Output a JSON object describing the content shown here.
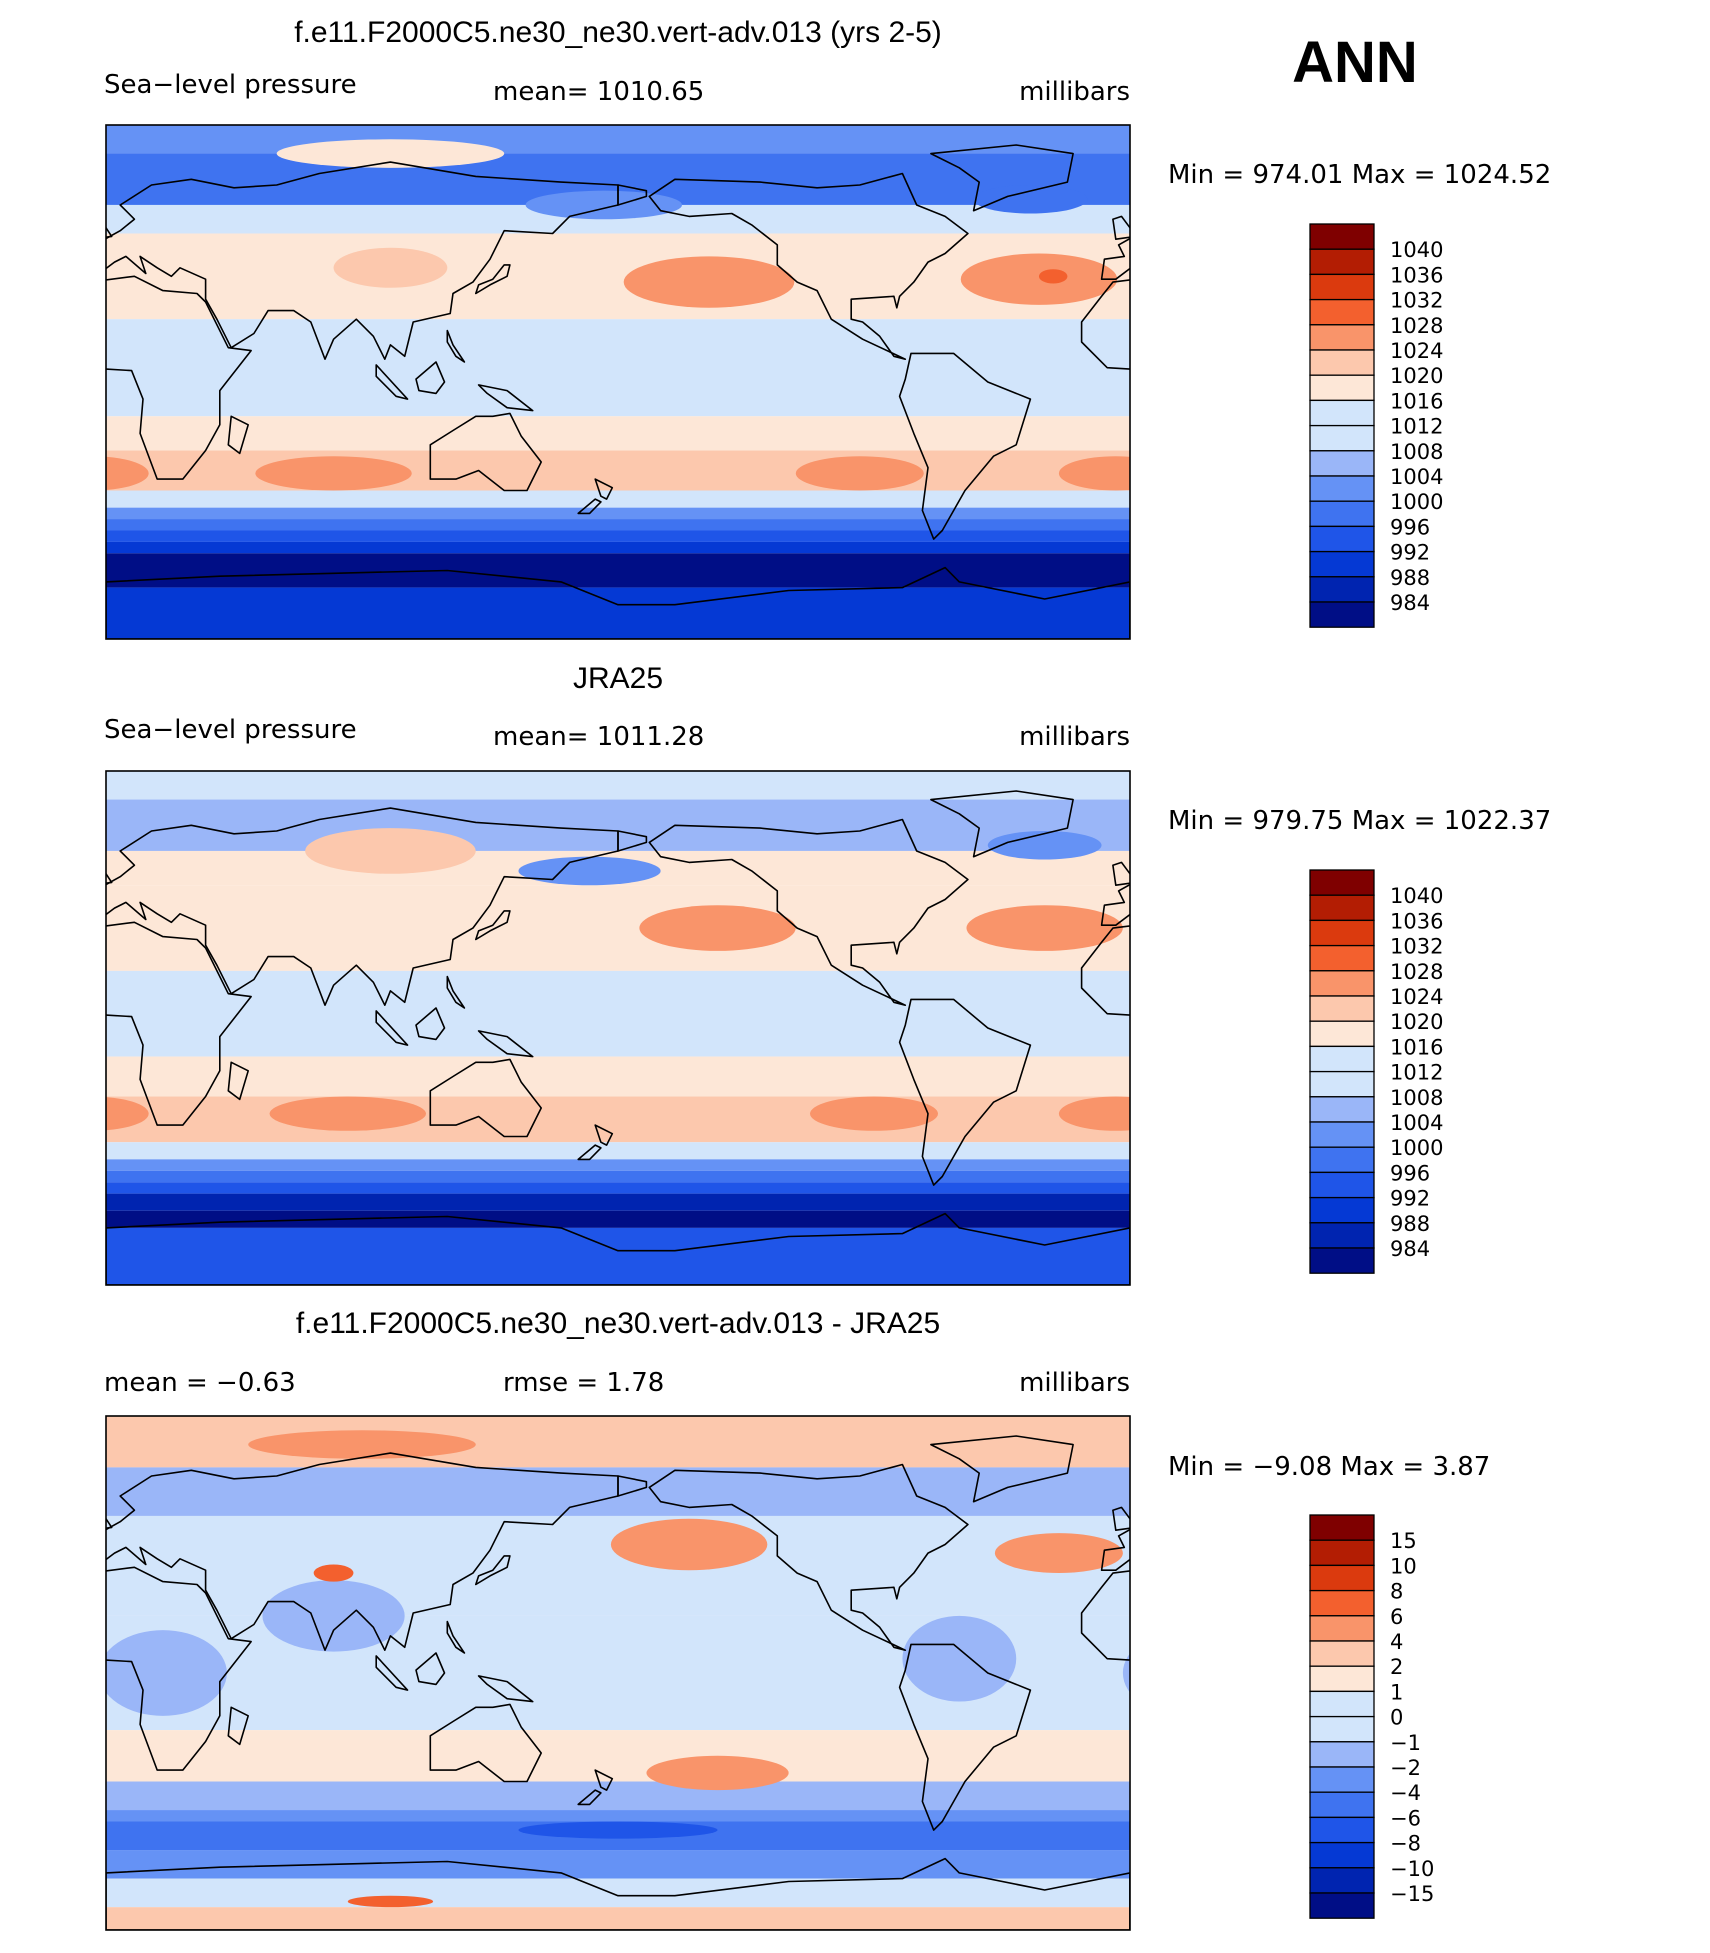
{
  "season": "ANN",
  "panels": [
    {
      "title": "f.e11.F2000C5.ne30_ne30.vert-adv.013 (yrs 2-5)",
      "left": "Sea−level pressure",
      "middle": "mean=  1010.65",
      "right": "millibars",
      "minmax": "Min  =  974.01  Max  =  1024.52",
      "legend": [
        "1040",
        "1036",
        "1032",
        "1028",
        "1024",
        "1020",
        "1016",
        "1012",
        "1008",
        "1004",
        "1000",
        "996",
        "992",
        "988",
        "984"
      ],
      "bands": [
        {
          "lat": [
            90,
            80
          ],
          "level": 5
        },
        {
          "lat": [
            80,
            62
          ],
          "level": 4
        },
        {
          "lat": [
            62,
            52
          ],
          "level": 7
        },
        {
          "lat": [
            52,
            22
          ],
          "level": 8
        },
        {
          "lat": [
            22,
            -12
          ],
          "level": 7
        },
        {
          "lat": [
            -12,
            -24
          ],
          "level": 8
        },
        {
          "lat": [
            -24,
            -38
          ],
          "level": 9
        },
        {
          "lat": [
            -38,
            -44
          ],
          "level": 7
        },
        {
          "lat": [
            -44,
            -48
          ],
          "level": 5
        },
        {
          "lat": [
            -48,
            -52
          ],
          "level": 4
        },
        {
          "lat": [
            -52,
            -56
          ],
          "level": 3
        },
        {
          "lat": [
            -56,
            -60
          ],
          "level": 2
        },
        {
          "lat": [
            -60,
            -72
          ],
          "level": 0
        },
        {
          "lat": [
            -72,
            -90
          ],
          "level": 2
        }
      ],
      "blobs": [
        {
          "lon": 212,
          "lat": 35,
          "w": 60,
          "h": 18,
          "level": 10
        },
        {
          "lon": 328,
          "lat": 36,
          "w": 55,
          "h": 18,
          "level": 10
        },
        {
          "lon": 333,
          "lat": 37,
          "w": 10,
          "h": 5,
          "level": 11
        },
        {
          "lon": 100,
          "lat": 40,
          "w": 40,
          "h": 14,
          "level": 9
        },
        {
          "lon": 80,
          "lat": -32,
          "w": 55,
          "h": 12,
          "level": 10
        },
        {
          "lon": 265,
          "lat": -32,
          "w": 45,
          "h": 12,
          "level": 10
        },
        {
          "lon": 355,
          "lat": -32,
          "w": 40,
          "h": 12,
          "level": 10
        },
        {
          "lon": 175,
          "lat": 62,
          "w": 55,
          "h": 10,
          "level": 5
        },
        {
          "lon": 325,
          "lat": 64,
          "w": 40,
          "h": 10,
          "level": 4
        },
        {
          "lon": 100,
          "lat": 80,
          "w": 80,
          "h": 10,
          "level": 8
        }
      ]
    },
    {
      "title": "JRA25",
      "left": "Sea−level pressure",
      "middle": "mean=  1011.28",
      "right": "millibars",
      "minmax": "Min  =  979.75  Max  =  1022.37",
      "legend": [
        "1040",
        "1036",
        "1032",
        "1028",
        "1024",
        "1020",
        "1016",
        "1012",
        "1008",
        "1004",
        "1000",
        "996",
        "992",
        "988",
        "984"
      ],
      "bands": [
        {
          "lat": [
            90,
            80
          ],
          "level": 7
        },
        {
          "lat": [
            80,
            62
          ],
          "level": 6
        },
        {
          "lat": [
            62,
            50
          ],
          "level": 8
        },
        {
          "lat": [
            50,
            20
          ],
          "level": 8
        },
        {
          "lat": [
            20,
            -10
          ],
          "level": 7
        },
        {
          "lat": [
            -10,
            -24
          ],
          "level": 8
        },
        {
          "lat": [
            -24,
            -40
          ],
          "level": 9
        },
        {
          "lat": [
            -40,
            -46
          ],
          "level": 7
        },
        {
          "lat": [
            -46,
            -50
          ],
          "level": 5
        },
        {
          "lat": [
            -50,
            -54
          ],
          "level": 4
        },
        {
          "lat": [
            -54,
            -58
          ],
          "level": 3
        },
        {
          "lat": [
            -58,
            -64
          ],
          "level": 1
        },
        {
          "lat": [
            -64,
            -70
          ],
          "level": 0
        },
        {
          "lat": [
            -70,
            -90
          ],
          "level": 3
        }
      ],
      "blobs": [
        {
          "lon": 215,
          "lat": 35,
          "w": 55,
          "h": 16,
          "level": 10
        },
        {
          "lon": 330,
          "lat": 35,
          "w": 55,
          "h": 16,
          "level": 10
        },
        {
          "lon": 170,
          "lat": 55,
          "w": 50,
          "h": 10,
          "level": 5
        },
        {
          "lon": 330,
          "lat": 64,
          "w": 40,
          "h": 10,
          "level": 5
        },
        {
          "lon": 85,
          "lat": -30,
          "w": 55,
          "h": 12,
          "level": 10
        },
        {
          "lon": 270,
          "lat": -30,
          "w": 45,
          "h": 12,
          "level": 10
        },
        {
          "lon": 355,
          "lat": -30,
          "w": 40,
          "h": 12,
          "level": 10
        },
        {
          "lon": 100,
          "lat": 62,
          "w": 60,
          "h": 16,
          "level": 9
        }
      ]
    },
    {
      "title": "f.e11.F2000C5.ne30_ne30.vert-adv.013 - JRA25",
      "left": "mean  =    −0.63",
      "middle": "rmse  =     1.78",
      "right": "millibars",
      "minmax": "Min  =    −9.08  Max  =     3.87",
      "legend": [
        "15",
        "10",
        "8",
        "6",
        "4",
        "2",
        "1",
        "0",
        "−1",
        "−2",
        "−4",
        "−6",
        "−8",
        "−10",
        "−15"
      ],
      "bands": [
        {
          "lat": [
            90,
            72
          ],
          "level": 9
        },
        {
          "lat": [
            72,
            55
          ],
          "level": 6
        },
        {
          "lat": [
            55,
            20
          ],
          "level": 7
        },
        {
          "lat": [
            20,
            -20
          ],
          "level": 7
        },
        {
          "lat": [
            -20,
            -38
          ],
          "level": 8
        },
        {
          "lat": [
            -38,
            -48
          ],
          "level": 6
        },
        {
          "lat": [
            -48,
            -52
          ],
          "level": 5
        },
        {
          "lat": [
            -52,
            -62
          ],
          "level": 4
        },
        {
          "lat": [
            -62,
            -72
          ],
          "level": 5
        },
        {
          "lat": [
            -72,
            -82
          ],
          "level": 7
        },
        {
          "lat": [
            -82,
            -90
          ],
          "level": 9
        }
      ],
      "blobs": [
        {
          "lon": 205,
          "lat": 45,
          "w": 55,
          "h": 18,
          "level": 10
        },
        {
          "lon": 335,
          "lat": 42,
          "w": 45,
          "h": 14,
          "level": 10
        },
        {
          "lon": 90,
          "lat": 80,
          "w": 80,
          "h": 10,
          "level": 10
        },
        {
          "lon": 215,
          "lat": -35,
          "w": 50,
          "h": 12,
          "level": 10
        },
        {
          "lon": 20,
          "lat": 0,
          "w": 45,
          "h": 30,
          "level": 6
        },
        {
          "lon": 80,
          "lat": 20,
          "w": 50,
          "h": 25,
          "level": 6
        },
        {
          "lon": 300,
          "lat": 5,
          "w": 40,
          "h": 30,
          "level": 6
        },
        {
          "lon": 80,
          "lat": 35,
          "w": 14,
          "h": 6,
          "level": 11
        },
        {
          "lon": 180,
          "lat": -55,
          "w": 70,
          "h": 6,
          "level": 3
        },
        {
          "lon": 100,
          "lat": -80,
          "w": 30,
          "h": 4,
          "level": 11
        }
      ]
    }
  ]
}
